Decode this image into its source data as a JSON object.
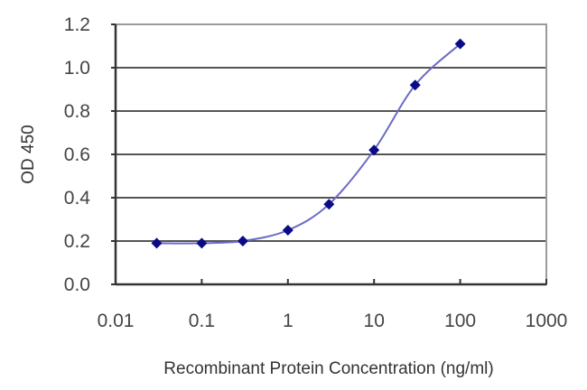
{
  "chart_data": {
    "type": "line",
    "title": "",
    "xlabel": "Recombinant Protein Concentration (ng/ml)",
    "ylabel": "OD 450",
    "x_scale": "log",
    "xlim": [
      0.01,
      1000
    ],
    "ylim": [
      0.0,
      1.2
    ],
    "x_ticks": [
      "0.01",
      "0.1",
      "1",
      "10",
      "100",
      "1000"
    ],
    "y_ticks": [
      "0.0",
      "0.2",
      "0.4",
      "0.6",
      "0.8",
      "1.0",
      "1.2"
    ],
    "grid": "horizontal",
    "legend": null,
    "series": [
      {
        "name": "OD 450",
        "color": "#1a1a8c",
        "marker": "diamond",
        "x": [
          0.03,
          0.1,
          0.3,
          1,
          3,
          10,
          30,
          100
        ],
        "y": [
          0.19,
          0.19,
          0.2,
          0.25,
          0.37,
          0.62,
          0.92,
          1.11
        ]
      }
    ]
  },
  "colors": {
    "line": "#6a6ac8",
    "marker": "#0a0a8a",
    "grid": "#555555",
    "axis": "#333333"
  }
}
